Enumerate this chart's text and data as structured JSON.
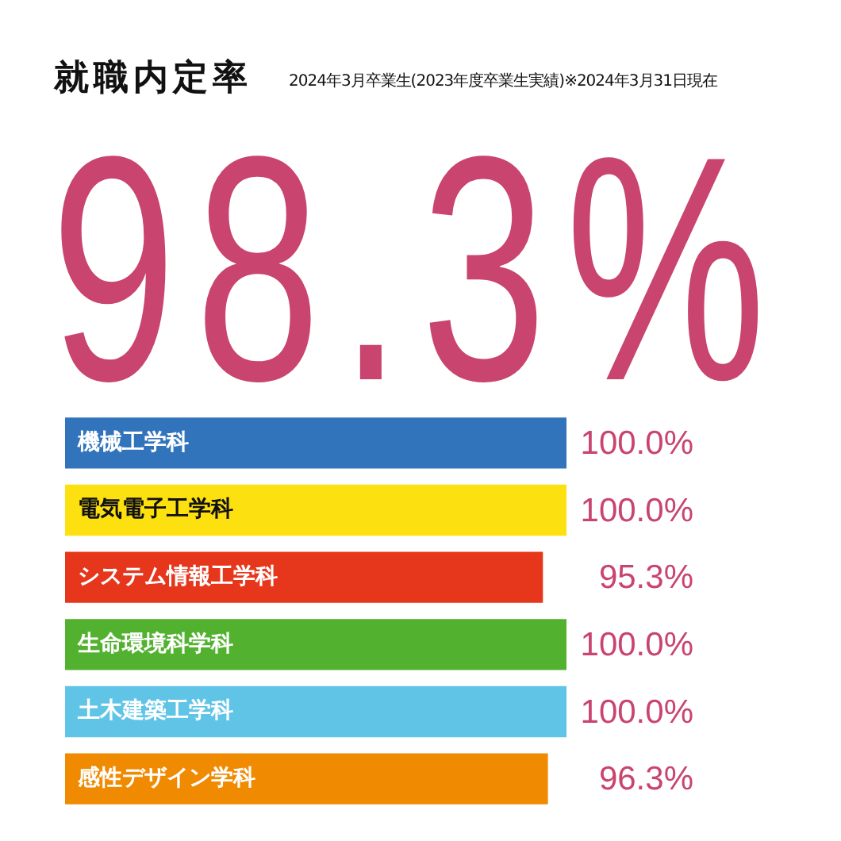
{
  "chart_data": {
    "type": "bar",
    "orientation": "horizontal",
    "title": "就職内定率",
    "subtitle": "2024年3月卒業生(2023年度卒業生実績)※2024年3月31日現在",
    "annotations": [
      "98.3%"
    ],
    "categories": [
      "機械工学科",
      "電気電子工学科",
      "システム情報工学科",
      "生命環境科学科",
      "土木建築工学科",
      "感性デザイン学科"
    ],
    "values": [
      100,
      100,
      95.3,
      100,
      100,
      96.3
    ],
    "colors": [
      "#3274bb",
      "#fde00f",
      "#e6361b",
      "#52b22f",
      "#5fc4e6",
      "#f08a00"
    ],
    "value_labels": [
      "100.0%",
      "100.0%",
      "95.3%",
      "100.0%",
      "100.0%",
      "96.3%"
    ],
    "xlim": [
      0,
      100
    ]
  }
}
